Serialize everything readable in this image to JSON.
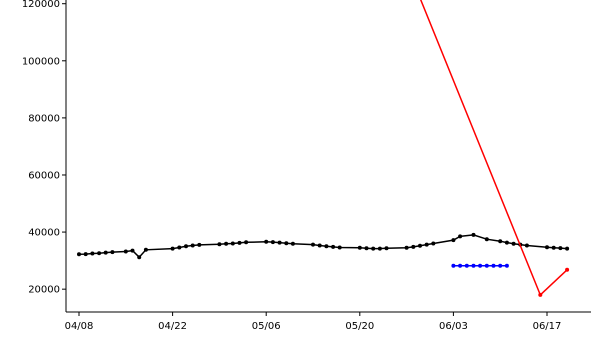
{
  "chart_data": {
    "type": "line",
    "title": "",
    "xlabel": "",
    "ylabel": "",
    "grid": false,
    "legend": "none",
    "x_ticks": [
      "04/08",
      "04/22",
      "05/06",
      "05/20",
      "06/03",
      "06/17"
    ],
    "y_ticks": [
      20000,
      40000,
      60000,
      80000,
      100000,
      120000
    ],
    "ylim": [
      12000,
      122000
    ],
    "series": [
      {
        "color": "#000000",
        "marker": "dot",
        "line": true,
        "x": [
          "04/08",
          "04/09",
          "04/10",
          "04/11",
          "04/12",
          "04/13",
          "04/15",
          "04/16",
          "04/17",
          "04/18",
          "04/22",
          "04/23",
          "04/24",
          "04/25",
          "04/26",
          "04/29",
          "04/30",
          "05/01",
          "05/02",
          "05/03",
          "05/06",
          "05/07",
          "05/08",
          "05/09",
          "05/10",
          "05/13",
          "05/14",
          "05/15",
          "05/16",
          "05/17",
          "05/20",
          "05/21",
          "05/22",
          "05/23",
          "05/24",
          "05/27",
          "05/28",
          "05/29",
          "05/30",
          "05/31",
          "06/03",
          "06/04",
          "06/06",
          "06/08",
          "06/10",
          "06/11",
          "06/12",
          "06/13",
          "06/14",
          "06/17",
          "06/18",
          "06/19",
          "06/20"
        ],
        "values": [
          32200,
          32300,
          32500,
          32600,
          32800,
          33000,
          33200,
          33500,
          31200,
          33800,
          34200,
          34600,
          35000,
          35300,
          35500,
          35700,
          35900,
          36000,
          36200,
          36400,
          36600,
          36500,
          36300,
          36100,
          35900,
          35600,
          35300,
          35000,
          34800,
          34600,
          34500,
          34300,
          34200,
          34200,
          34300,
          34500,
          34800,
          35200,
          35600,
          36000,
          37200,
          38500,
          39000,
          37500,
          36800,
          36300,
          35900,
          35600,
          35300,
          34700,
          34500,
          34400,
          34200
        ]
      },
      {
        "color": "#0000ff",
        "marker": "dot",
        "line": true,
        "x": [
          "06/03",
          "06/04",
          "06/05",
          "06/06",
          "06/07",
          "06/08",
          "06/09",
          "06/10",
          "06/11"
        ],
        "values": [
          28200,
          28200,
          28200,
          28200,
          28200,
          28200,
          28200,
          28200,
          28200
        ]
      },
      {
        "color": "#ff0000",
        "marker": "none",
        "line": true,
        "x": [
          "05/29",
          "06/16"
        ],
        "values": [
          122000,
          18000
        ]
      },
      {
        "color": "#ff0000",
        "marker": "dot",
        "line": true,
        "x": [
          "06/16",
          "06/20"
        ],
        "values": [
          18000,
          26800
        ]
      }
    ]
  }
}
